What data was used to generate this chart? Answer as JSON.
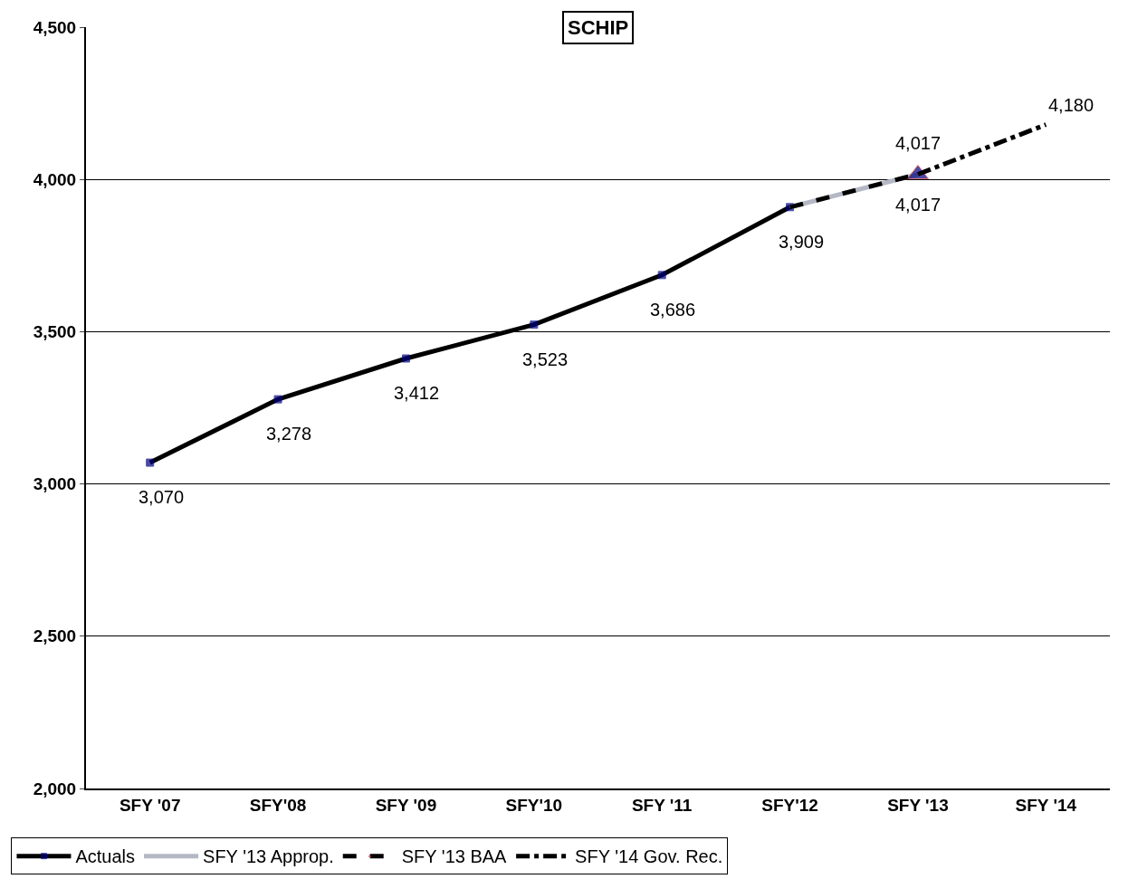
{
  "chart_data": {
    "type": "line",
    "title": "SCHIP",
    "categories": [
      "SFY '07",
      "SFY'08",
      "SFY '09",
      "SFY'10",
      "SFY '11",
      "SFY'12",
      "SFY '13",
      "SFY '14"
    ],
    "series": [
      {
        "name": "Actuals",
        "color": "#000000",
        "marker": "square",
        "line_style": "solid",
        "values": [
          3070,
          3278,
          3412,
          3523,
          3686,
          3909,
          null,
          null
        ],
        "value_labels": [
          "3,070",
          "3,278",
          "3,412",
          "3,523",
          "3,686",
          "3,909",
          null,
          null
        ]
      },
      {
        "name": "SFY '13 Approp.",
        "color": "#b4b8c4",
        "marker": "none",
        "line_style": "solid",
        "values": [
          null,
          null,
          null,
          null,
          null,
          3909,
          4017,
          null
        ],
        "value_labels": [
          null,
          null,
          null,
          null,
          null,
          null,
          "4,017",
          null
        ]
      },
      {
        "name": "SFY '13 BAA",
        "color": "#000000",
        "marker": "triangle",
        "line_style": "dashed",
        "values": [
          null,
          null,
          null,
          null,
          null,
          3909,
          4017,
          null
        ],
        "value_labels": [
          null,
          null,
          null,
          null,
          null,
          null,
          "4,017",
          null
        ]
      },
      {
        "name": "SFY '14 Gov. Rec.",
        "color": "#000000",
        "marker": "none",
        "line_style": "dashdot",
        "values": [
          null,
          null,
          null,
          null,
          null,
          null,
          4017,
          4180
        ],
        "value_labels": [
          null,
          null,
          null,
          null,
          null,
          null,
          null,
          "4,180"
        ]
      }
    ],
    "ylim": [
      2000,
      4500
    ],
    "yticks": [
      {
        "value": 2000,
        "label": "2,000"
      },
      {
        "value": 2500,
        "label": "2,500"
      },
      {
        "value": 3000,
        "label": "3,000"
      },
      {
        "value": 3500,
        "label": "3,500"
      },
      {
        "value": 4000,
        "label": "4,000"
      },
      {
        "value": 4500,
        "label": "4,500"
      }
    ],
    "grid": "y",
    "legend": "bottom"
  }
}
